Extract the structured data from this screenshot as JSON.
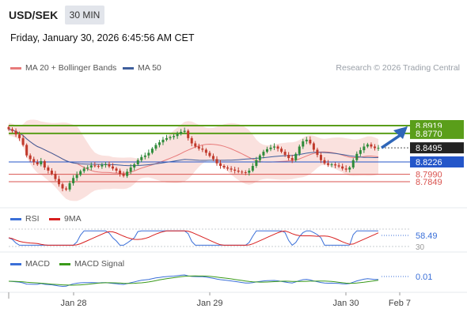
{
  "header": {
    "symbol": "USD/SEK",
    "timeframe": "30 MIN",
    "datetime": "Friday, January 30, 2026 6:45:56 AM CET"
  },
  "legend": {
    "ma20": "MA 20 + Bollinger Bands",
    "ma50": "MA 50",
    "credit": "Research © 2026 Trading Central"
  },
  "rsi_legend": {
    "rsi": "RSI",
    "ma9": "9MA"
  },
  "macd_legend": {
    "macd": "MACD",
    "signal": "MACD Signal"
  },
  "colors": {
    "up": "#2e8b3a",
    "down": "#c0392b",
    "ma20": "#e87a7a",
    "ma50": "#3f5f9c",
    "band": "#f9d9d6",
    "green_level": "#5a9e1a",
    "blue_level": "#2456c9",
    "red_level": "#d9534f",
    "arrow": "#2f66b8",
    "price_box": "#222222"
  },
  "chart_data": {
    "type": "candlestick",
    "x_ticks": [
      "Jan 28",
      "Jan 29",
      "Jan 30",
      "Feb 7"
    ],
    "y_range": [
      8.755,
      8.935
    ],
    "levels": [
      {
        "value": "8.8919",
        "kind": "resistance",
        "color": "green"
      },
      {
        "value": "8.8770",
        "kind": "resistance",
        "color": "green"
      },
      {
        "value": "8.8495",
        "kind": "last_price",
        "color": "dark"
      },
      {
        "value": "8.8226",
        "kind": "pivot",
        "color": "blue"
      },
      {
        "value": "8.7990",
        "kind": "support",
        "color": "red"
      },
      {
        "value": "8.7849",
        "kind": "support",
        "color": "red"
      }
    ],
    "price_path": [
      8.885,
      8.882,
      8.875,
      8.868,
      8.855,
      8.835,
      8.828,
      8.822,
      8.818,
      8.824,
      8.812,
      8.806,
      8.8,
      8.79,
      8.78,
      8.772,
      8.77,
      8.782,
      8.792,
      8.798,
      8.805,
      8.81,
      8.812,
      8.816,
      8.815,
      8.814,
      8.817,
      8.818,
      8.814,
      8.81,
      8.806,
      8.8,
      8.796,
      8.804,
      8.812,
      8.818,
      8.826,
      8.832,
      8.835,
      8.84,
      8.848,
      8.855,
      8.86,
      8.865,
      8.868,
      8.87,
      8.872,
      8.876,
      8.88,
      8.882,
      8.868,
      8.858,
      8.852,
      8.848,
      8.846,
      8.84,
      8.834,
      8.828,
      8.82,
      8.815,
      8.812,
      8.81,
      8.808,
      8.806,
      8.804,
      8.803,
      8.802,
      8.806,
      8.815,
      8.826,
      8.835,
      8.842,
      8.847,
      8.85,
      8.852,
      8.848,
      8.842,
      8.836,
      8.83,
      8.826,
      8.838,
      8.852,
      8.862,
      8.865,
      8.858,
      8.846,
      8.836,
      8.826,
      8.82,
      8.817,
      8.818,
      8.816,
      8.814,
      8.81,
      8.808,
      8.812,
      8.826,
      8.838,
      8.845,
      8.852,
      8.856,
      8.852,
      8.849,
      8.8495
    ],
    "rsi": {
      "label_value": "58.49",
      "levels": [
        70,
        30
      ],
      "tick": "30"
    },
    "macd": {
      "label_value": "0.01"
    }
  }
}
